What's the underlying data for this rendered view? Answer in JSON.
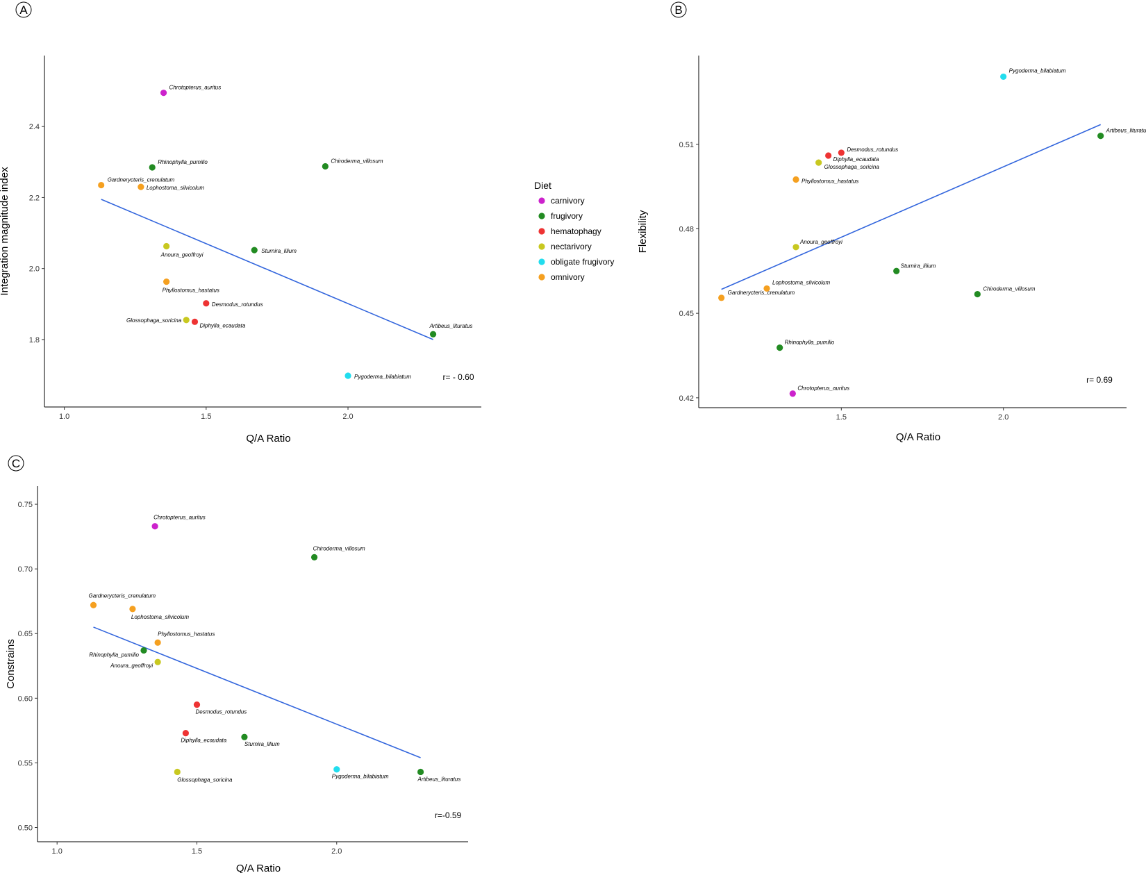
{
  "colors": {
    "carnivory": "#CC22CC",
    "frugivory": "#228B22",
    "hematophagy": "#EE3333",
    "nectarivory": "#C8C820",
    "obligate frugivory": "#22DDEE",
    "omnivory": "#F5A020",
    "trend_line": "#3366DD"
  },
  "legend": {
    "title": "Diet",
    "items": [
      {
        "label": "carnivory",
        "color": "#CC22CC"
      },
      {
        "label": "frugivory",
        "color": "#228B22"
      },
      {
        "label": "hematophagy",
        "color": "#EE3333"
      },
      {
        "label": "nectarivory",
        "color": "#C8C820"
      },
      {
        "label": "obligate frugivory",
        "color": "#22DDEE"
      },
      {
        "label": "omnivory",
        "color": "#F5A020"
      }
    ]
  },
  "chart_data": [
    {
      "panel": "A",
      "type": "scatter",
      "xlabel": "Q/A Ratio",
      "ylabel": "Integration magnitude index",
      "xticks": [
        1.0,
        1.5,
        2.0
      ],
      "xtick_labels": [
        "1.0",
        "1.5",
        "2.0"
      ],
      "yticks": [
        1.8,
        2.0,
        2.2,
        2.4
      ],
      "ytick_labels": [
        "1.8",
        "2.0",
        "2.2",
        "2.4"
      ],
      "r_label": "r= - 0.60",
      "trend": {
        "x1": 1.13,
        "y1": 2.195,
        "x2": 2.3,
        "y2": 1.8
      },
      "points": [
        {
          "name": "Chrotopterus_auritus",
          "diet": "carnivory",
          "x": 1.35,
          "y": 2.495
        },
        {
          "name": "Rhinophylla_pumilio",
          "diet": "frugivory",
          "x": 1.31,
          "y": 2.285
        },
        {
          "name": "Chiroderma_villosum",
          "diet": "frugivory",
          "x": 1.92,
          "y": 2.288
        },
        {
          "name": "Gardnerycteris_crenulatum",
          "diet": "omnivory",
          "x": 1.13,
          "y": 2.235
        },
        {
          "name": "Lophostoma_silvicolum",
          "diet": "omnivory",
          "x": 1.27,
          "y": 2.23
        },
        {
          "name": "Anoura_geoffroyi",
          "diet": "nectarivory",
          "x": 1.36,
          "y": 2.063
        },
        {
          "name": "Sturnira_lilium",
          "diet": "frugivory",
          "x": 1.67,
          "y": 2.052
        },
        {
          "name": "Phyllostomus_hastatus",
          "diet": "omnivory",
          "x": 1.36,
          "y": 1.963
        },
        {
          "name": "Desmodus_rotundus",
          "diet": "hematophagy",
          "x": 1.5,
          "y": 1.902
        },
        {
          "name": "Glossophaga_soricina",
          "diet": "nectarivory",
          "x": 1.43,
          "y": 1.855
        },
        {
          "name": "Diphylla_ecaudata",
          "diet": "hematophagy",
          "x": 1.46,
          "y": 1.85
        },
        {
          "name": "Artibeus_lituratus",
          "diet": "frugivory",
          "x": 2.3,
          "y": 1.815
        },
        {
          "name": "Pygoderma_bilabiatum",
          "diet": "obligate frugivory",
          "x": 2.0,
          "y": 1.698
        }
      ]
    },
    {
      "panel": "B",
      "type": "scatter",
      "xlabel": "Q/A Ratio",
      "ylabel": "Flexibility",
      "xticks": [
        1.5,
        2.0
      ],
      "xtick_labels": [
        "1.5",
        "2.0"
      ],
      "yticks": [
        0.42,
        0.45,
        0.48,
        0.51
      ],
      "ytick_labels": [
        "0.42",
        "0.45",
        "0.48",
        "0.51"
      ],
      "r_label": "r= 0.69",
      "trend": {
        "x1": 1.13,
        "y1": 0.4585,
        "x2": 2.3,
        "y2": 0.517
      },
      "points": [
        {
          "name": "Pygoderma_bilabiatum",
          "diet": "obligate frugivory",
          "x": 2.0,
          "y": 0.534
        },
        {
          "name": "Artibeus_lituratus",
          "diet": "frugivory",
          "x": 2.3,
          "y": 0.513
        },
        {
          "name": "Desmodus_rotundus",
          "diet": "hematophagy",
          "x": 1.5,
          "y": 0.507
        },
        {
          "name": "Diphylla_ecaudata",
          "diet": "hematophagy",
          "x": 1.46,
          "y": 0.506
        },
        {
          "name": "Glossophaga_soricina",
          "diet": "nectarivory",
          "x": 1.43,
          "y": 0.5035
        },
        {
          "name": "Phyllostomus_hastatus",
          "diet": "omnivory",
          "x": 1.36,
          "y": 0.4975
        },
        {
          "name": "Anoura_geoffroyi",
          "diet": "nectarivory",
          "x": 1.36,
          "y": 0.4735
        },
        {
          "name": "Sturnira_lilium",
          "diet": "frugivory",
          "x": 1.67,
          "y": 0.465
        },
        {
          "name": "Lophostoma_silvicolum",
          "diet": "omnivory",
          "x": 1.27,
          "y": 0.4588
        },
        {
          "name": "Gardnerycteris_crenulatum",
          "diet": "omnivory",
          "x": 1.13,
          "y": 0.4555
        },
        {
          "name": "Chiroderma_villosum",
          "diet": "frugivory",
          "x": 1.92,
          "y": 0.4568
        },
        {
          "name": "Rhinophylla_pumilio",
          "diet": "frugivory",
          "x": 1.31,
          "y": 0.4378
        },
        {
          "name": "Chrotopterus_auritus",
          "diet": "carnivory",
          "x": 1.35,
          "y": 0.4215
        }
      ]
    },
    {
      "panel": "C",
      "type": "scatter",
      "xlabel": "Q/A Ratio",
      "ylabel": "Constrains",
      "xticks": [
        1.0,
        1.5,
        2.0
      ],
      "xtick_labels": [
        "1.0",
        "1.5",
        "2.0"
      ],
      "yticks": [
        0.5,
        0.55,
        0.6,
        0.65,
        0.7,
        0.75
      ],
      "ytick_labels": [
        "0.50",
        "0.55",
        "0.60",
        "0.65",
        "0.70",
        "0.75"
      ],
      "r_label": "r=-0.59",
      "trend": {
        "x1": 1.13,
        "y1": 0.655,
        "x2": 2.3,
        "y2": 0.554
      },
      "points": [
        {
          "name": "Chrotopterus_auritus",
          "diet": "carnivory",
          "x": 1.35,
          "y": 0.733
        },
        {
          "name": "Chiroderma_villosum",
          "diet": "frugivory",
          "x": 1.92,
          "y": 0.709
        },
        {
          "name": "Gardnerycteris_crenulatum",
          "diet": "omnivory",
          "x": 1.13,
          "y": 0.672
        },
        {
          "name": "Lophostoma_silvicolum",
          "diet": "omnivory",
          "x": 1.27,
          "y": 0.669
        },
        {
          "name": "Phyllostomus_hastatus",
          "diet": "omnivory",
          "x": 1.36,
          "y": 0.643
        },
        {
          "name": "Rhinophylla_pumilio",
          "diet": "frugivory",
          "x": 1.31,
          "y": 0.637
        },
        {
          "name": "Anoura_geoffroyi",
          "diet": "nectarivory",
          "x": 1.36,
          "y": 0.628
        },
        {
          "name": "Desmodus_rotundus",
          "diet": "hematophagy",
          "x": 1.5,
          "y": 0.595
        },
        {
          "name": "Diphylla_ecaudata",
          "diet": "hematophagy",
          "x": 1.46,
          "y": 0.573
        },
        {
          "name": "Sturnira_lilium",
          "diet": "frugivory",
          "x": 1.67,
          "y": 0.57
        },
        {
          "name": "Glossophaga_soricina",
          "diet": "nectarivory",
          "x": 1.43,
          "y": 0.543
        },
        {
          "name": "Pygoderma_bilabiatum",
          "diet": "obligate frugivory",
          "x": 2.0,
          "y": 0.545
        },
        {
          "name": "Artibeus_lituratus",
          "diet": "frugivory",
          "x": 2.3,
          "y": 0.543
        }
      ]
    }
  ]
}
